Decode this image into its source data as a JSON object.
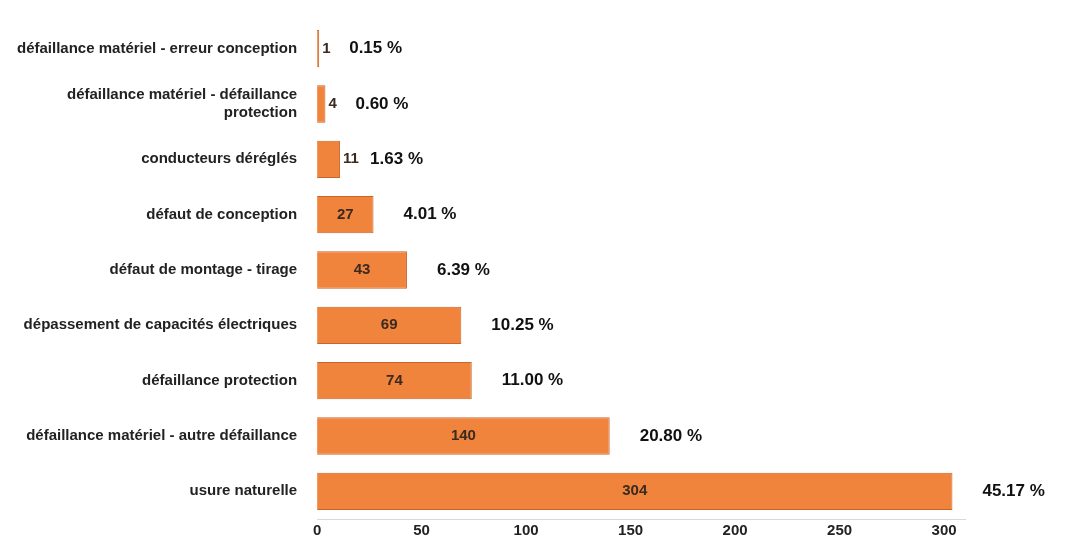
{
  "chart_data": {
    "type": "bar",
    "orientation": "horizontal",
    "categories": [
      "défaillance matériel - erreur conception",
      "défaillance matériel - défaillance protection",
      "conducteurs déréglés",
      "défaut de conception",
      "défaut de montage - tirage",
      "dépassement de capacités électriques",
      "défaillance protection",
      "défaillance matériel - autre défaillance",
      "usure naturelle"
    ],
    "values": [
      1,
      4,
      11,
      27,
      43,
      69,
      74,
      140,
      304
    ],
    "color": "#f0843c",
    "xlim": [
      0,
      310
    ],
    "xticks": [
      0,
      50,
      100,
      150,
      200,
      250,
      300
    ],
    "grid": false,
    "legend": false,
    "data_labels": true,
    "annotations": [
      {
        "text": "0.15 %",
        "x": 1,
        "y": "défaillance matériel - erreur conception"
      },
      {
        "text": "0.60 %",
        "x": 4,
        "y": "défaillance matériel - défaillance protection"
      },
      {
        "text": "1.63 %",
        "x": 11,
        "y": "conducteurs déréglés"
      },
      {
        "text": "4.01 %",
        "x": 27,
        "y": "défaut de conception"
      },
      {
        "text": "6.39 %",
        "x": 43,
        "y": "défaut de montage - tirage"
      },
      {
        "text": "10.25 %",
        "x": 69,
        "y": "dépassement de capacités électriques"
      },
      {
        "text": "11.00 %",
        "x": 74,
        "y": "défaillance protection"
      },
      {
        "text": "20.80 %",
        "x": 140,
        "y": "défaillance matériel - autre défaillance"
      },
      {
        "text": "45.17 %",
        "x": 304,
        "y": "usure naturelle"
      }
    ]
  }
}
